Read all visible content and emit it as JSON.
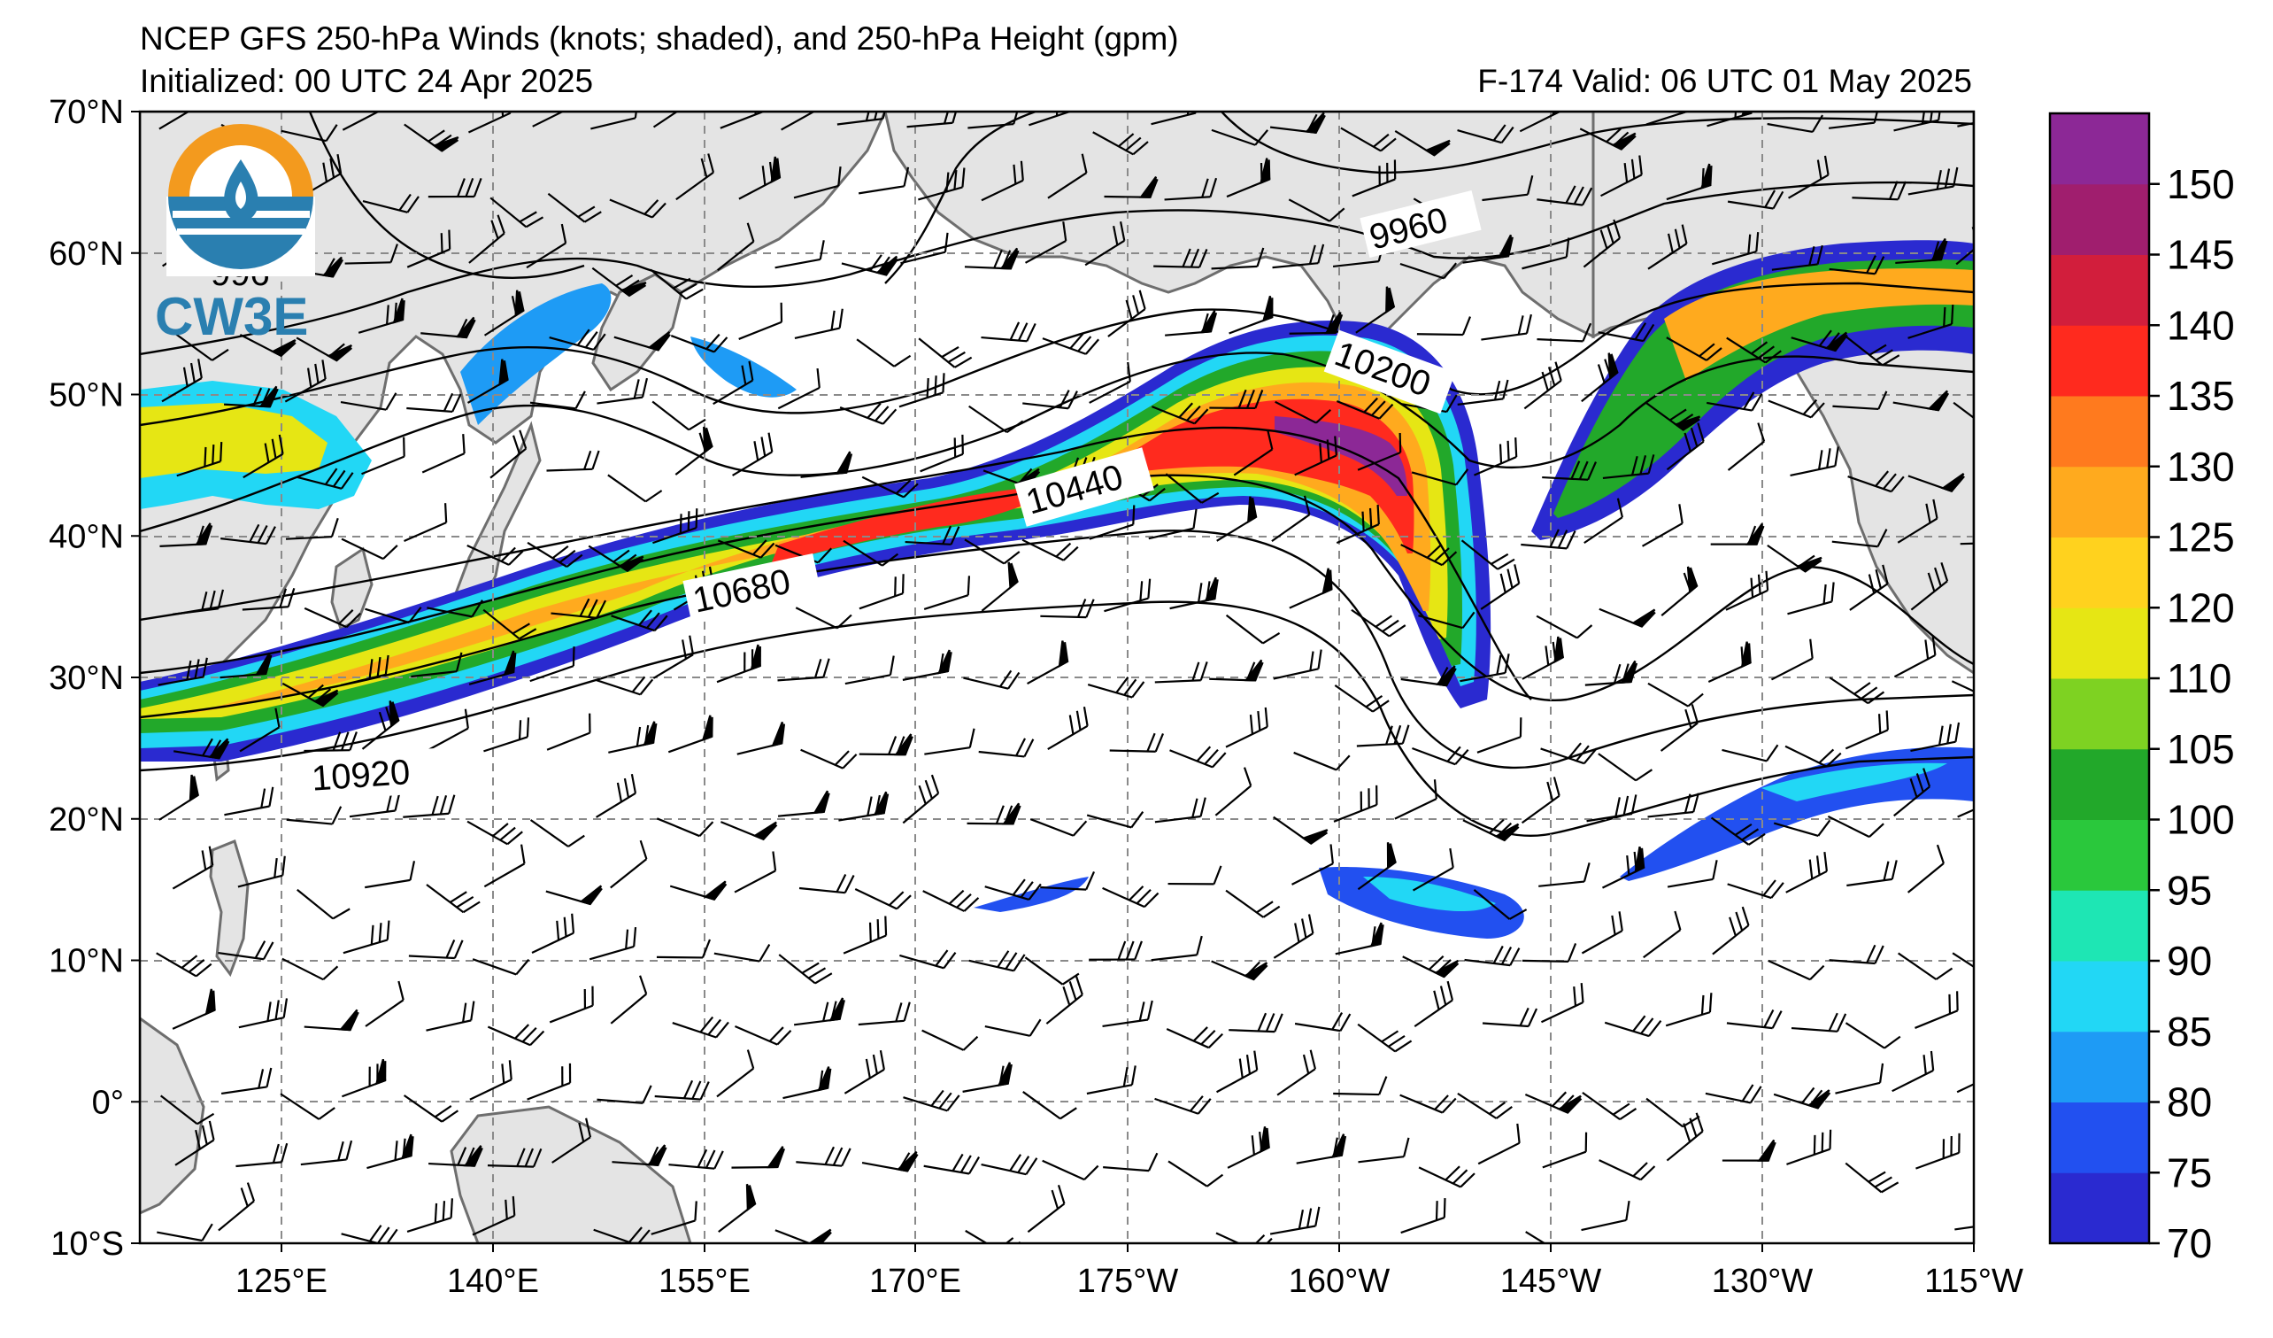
{
  "title": {
    "line1": "NCEP GFS 250-hPa Winds (knots; shaded), and 250-hPa Height (gpm)",
    "line2": "Initialized: 00 UTC 24 Apr 2025",
    "right": "F-174  Valid: 06 UTC 01 May 2025"
  },
  "logo": {
    "text": "CW3E",
    "name": "cw3e-logo"
  },
  "map": {
    "lon_ticks": [
      "125°E",
      "140°E",
      "155°E",
      "170°E",
      "175°W",
      "160°W",
      "145°W",
      "130°W",
      "115°W"
    ],
    "lat_ticks": [
      "70°N",
      "60°N",
      "50°N",
      "40°N",
      "30°N",
      "20°N",
      "10°N",
      "0°",
      "10°S"
    ],
    "lon_range": [
      "115°E",
      "115°W"
    ],
    "lat_range": [
      "10°S",
      "70°N"
    ],
    "gridlines": "dashed",
    "land_color": "#e4e4e4",
    "coast_color": "#6e6e6e"
  },
  "colorbar": {
    "values": [
      "70",
      "75",
      "80",
      "85",
      "90",
      "95",
      "100",
      "105",
      "110",
      "120",
      "125",
      "130",
      "135",
      "140",
      "145",
      "150"
    ],
    "colors": [
      "#2a2ad0",
      "#2250f0",
      "#1e9bf5",
      "#22d7f5",
      "#1ee6b4",
      "#2ac83c",
      "#22a82a",
      "#7ed222",
      "#e6e614",
      "#ffd21e",
      "#ffaa1e",
      "#ff7a1e",
      "#ff2a1e",
      "#d21e3c",
      "#a01e6e",
      "#8c2896"
    ]
  },
  "contour_labels": [
    "9960",
    "996",
    "10200",
    "10440",
    "10680",
    "10920"
  ]
}
